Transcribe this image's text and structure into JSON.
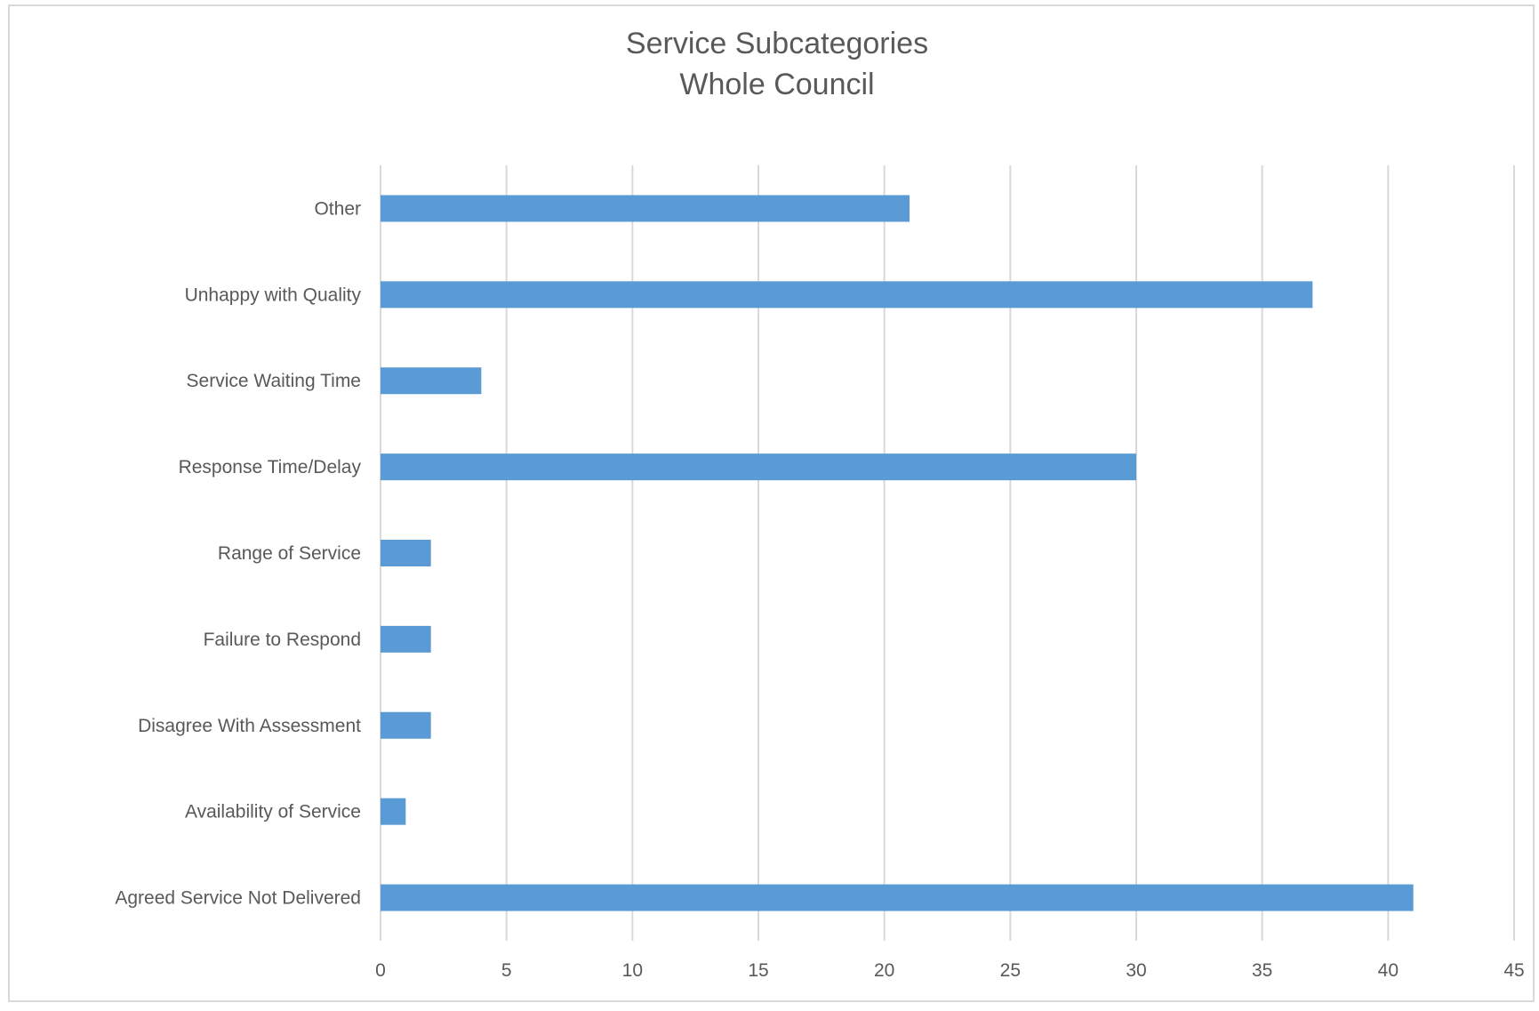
{
  "chart_data": {
    "type": "bar",
    "orientation": "horizontal",
    "title": "Service Subcategories",
    "subtitle": "Whole Council",
    "xlabel": "",
    "ylabel": "",
    "categories": [
      "Other",
      "Unhappy with Quality",
      "Service Waiting Time",
      "Response Time/Delay",
      "Range of Service",
      "Failure to Respond",
      "Disagree With Assessment",
      "Availability of Service",
      "Agreed Service Not Delivered"
    ],
    "values": [
      21,
      37,
      4,
      30,
      2,
      2,
      2,
      1,
      41
    ],
    "xlim": [
      0,
      45
    ],
    "x_ticks": [
      "0",
      "5",
      "10",
      "15",
      "20",
      "25",
      "30",
      "35",
      "40",
      "45"
    ],
    "grid": "vertical",
    "legend": "none",
    "bar_color": "#5b9bd5",
    "grid_color": "#d9d9d9",
    "text_color": "#595959"
  }
}
